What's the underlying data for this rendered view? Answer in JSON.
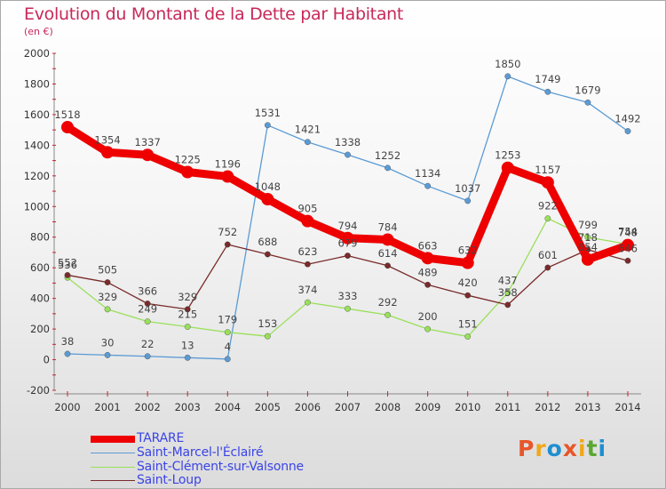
{
  "header": {
    "title": "Evolution du Montant de la Dette par Habitant",
    "subtitle": "(en €)"
  },
  "logo": {
    "text": "Proxiti",
    "colors": [
      "#e8562a",
      "#f0a81c",
      "#1e8fd0",
      "#e8562a",
      "#f0a81c",
      "#5aa832",
      "#1e8fd0"
    ]
  },
  "chart_data": {
    "type": "line",
    "title": "Evolution du Montant de la Dette par Habitant",
    "subtitle": "(en €)",
    "x": [
      "2000",
      "2001",
      "2002",
      "2003",
      "2004",
      "2005",
      "2006",
      "2007",
      "2008",
      "2009",
      "2010",
      "2011",
      "2012",
      "2013",
      "2014"
    ],
    "ylim": [
      -200,
      2000
    ],
    "yticks": [
      -200,
      0,
      200,
      400,
      600,
      800,
      1000,
      1200,
      1400,
      1600,
      1800,
      2000
    ],
    "grid": false,
    "legend_position": "bottom-left",
    "series": [
      {
        "name": "TARARE",
        "color": "#ee0000",
        "thick": true,
        "values": [
          1518,
          1354,
          1337,
          1225,
          1196,
          1048,
          905,
          794,
          784,
          663,
          632,
          1253,
          1157,
          654,
          748
        ]
      },
      {
        "name": "Saint-Marcel-l'Éclairé",
        "color": "#5b9bd5",
        "thick": false,
        "values": [
          38,
          30,
          22,
          13,
          4,
          1531,
          1421,
          1338,
          1252,
          1134,
          1037,
          1850,
          1749,
          1679,
          1492
        ]
      },
      {
        "name": "Saint-Clément-sur-Valsonne",
        "color": "#99e05a",
        "thick": false,
        "values": [
          536,
          329,
          249,
          215,
          179,
          153,
          374,
          333,
          292,
          200,
          151,
          437,
          922,
          799,
          754
        ]
      },
      {
        "name": "Saint-Loup",
        "color": "#7a2a2a",
        "thick": false,
        "values": [
          552,
          505,
          366,
          329,
          752,
          688,
          623,
          679,
          614,
          489,
          420,
          358,
          601,
          718,
          646
        ]
      }
    ]
  }
}
